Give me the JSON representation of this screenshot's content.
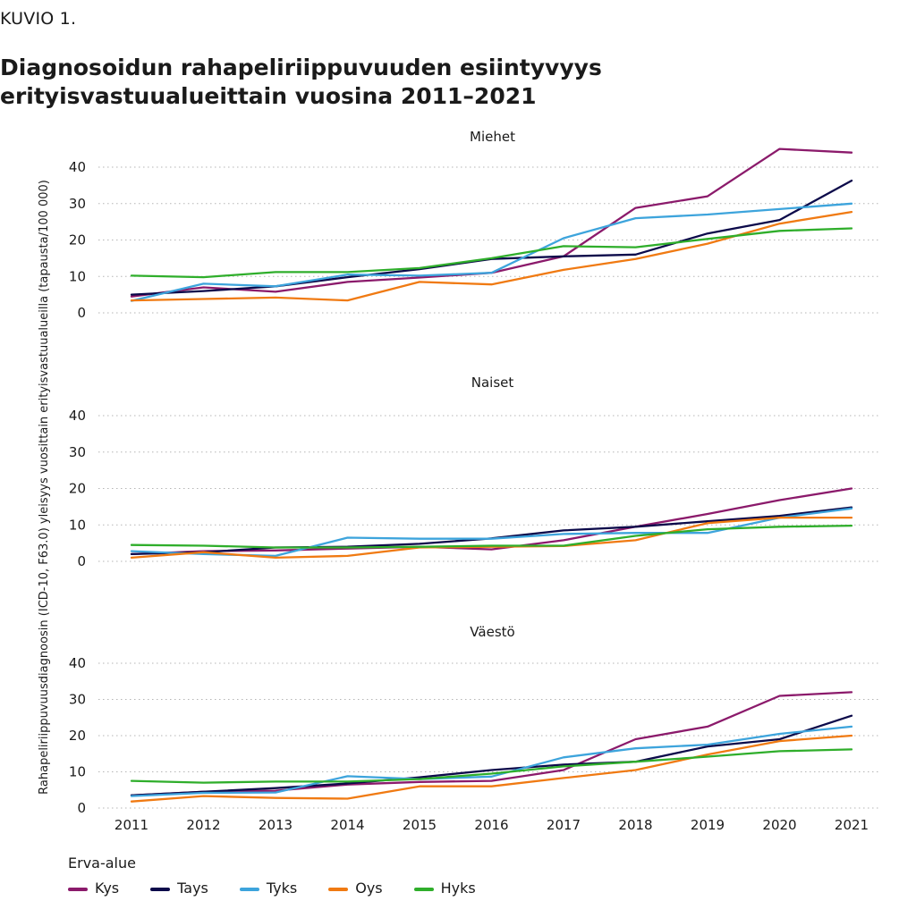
{
  "header": {
    "kuvio": "KUVIO 1.",
    "title": "Diagnosoidun rahapeliriippuvuuden esiintyvyys erityisvastuualueittain vuosina 2011–2021"
  },
  "legend": {
    "title": "Erva-alue"
  },
  "chart_data": {
    "type": "line",
    "x": [
      "2011",
      "2012",
      "2013",
      "2014",
      "2015",
      "2016",
      "2017",
      "2018",
      "2019",
      "2020",
      "2021"
    ],
    "ylabel": "Rahapeliriippuvuusdiagnoosin (ICD-10, F63.0) yleisyys vuosittain erityisvastuualueilla (tapausta/100 000)",
    "ylim": [
      0,
      40
    ],
    "yticks": [
      0,
      10,
      20,
      30,
      40
    ],
    "grid": true,
    "legend_position": "bottom-left",
    "series_colors": {
      "Kys": "#8b1a6b",
      "Tays": "#0c0a4a",
      "Tyks": "#3da4dc",
      "Oys": "#f07a12",
      "Hyks": "#2fae2b"
    },
    "panels": [
      {
        "title": "Miehet",
        "series": [
          {
            "name": "Kys",
            "values": [
              4.5,
              7.0,
              5.8,
              8.5,
              9.7,
              11.0,
              15.5,
              28.8,
              32.0,
              45.0,
              44.0
            ]
          },
          {
            "name": "Tays",
            "values": [
              5.0,
              6.0,
              7.3,
              9.8,
              12.0,
              14.8,
              15.5,
              16.0,
              21.8,
              25.5,
              36.3
            ]
          },
          {
            "name": "Tyks",
            "values": [
              3.3,
              8.0,
              7.3,
              10.5,
              10.2,
              11.0,
              20.5,
              26.0,
              27.0,
              28.5,
              30.0
            ]
          },
          {
            "name": "Oys",
            "values": [
              3.4,
              3.8,
              4.2,
              3.4,
              8.5,
              7.8,
              11.8,
              14.8,
              19.0,
              24.5,
              27.7
            ]
          },
          {
            "name": "Hyks",
            "values": [
              10.2,
              9.8,
              11.2,
              11.2,
              12.3,
              15.0,
              18.3,
              18.0,
              20.3,
              22.5,
              23.2
            ]
          }
        ]
      },
      {
        "title": "Naiset",
        "series": [
          {
            "name": "Kys",
            "values": [
              2.0,
              2.8,
              3.0,
              3.5,
              4.0,
              3.3,
              5.8,
              9.5,
              13.0,
              16.8,
              20.0
            ]
          },
          {
            "name": "Tays",
            "values": [
              2.0,
              2.5,
              3.8,
              4.0,
              4.8,
              6.3,
              8.5,
              9.5,
              11.0,
              12.5,
              14.8
            ]
          },
          {
            "name": "Tyks",
            "values": [
              2.8,
              2.0,
              1.5,
              6.5,
              6.2,
              6.2,
              7.5,
              7.8,
              7.8,
              12.0,
              14.5
            ]
          },
          {
            "name": "Oys",
            "values": [
              1.0,
              2.5,
              1.0,
              1.5,
              3.8,
              4.0,
              4.2,
              5.8,
              10.5,
              12.0,
              12.0
            ]
          },
          {
            "name": "Hyks",
            "values": [
              4.5,
              4.3,
              3.8,
              3.8,
              4.0,
              4.3,
              4.3,
              7.0,
              8.8,
              9.5,
              9.8
            ]
          }
        ]
      },
      {
        "title": "Väestö",
        "series": [
          {
            "name": "Kys",
            "values": [
              3.5,
              4.5,
              4.8,
              6.5,
              7.2,
              7.5,
              10.5,
              19.0,
              22.5,
              31.0,
              32.0
            ]
          },
          {
            "name": "Tays",
            "values": [
              3.5,
              4.5,
              5.5,
              6.8,
              8.5,
              10.5,
              12.0,
              12.8,
              17.0,
              19.0,
              25.5
            ]
          },
          {
            "name": "Tyks",
            "values": [
              3.3,
              4.2,
              4.3,
              8.8,
              8.0,
              8.7,
              14.0,
              16.5,
              17.5,
              20.5,
              22.5
            ]
          },
          {
            "name": "Oys",
            "values": [
              1.8,
              3.3,
              2.8,
              2.6,
              6.0,
              6.0,
              8.3,
              10.5,
              14.8,
              18.5,
              20.0
            ]
          },
          {
            "name": "Hyks",
            "values": [
              7.5,
              7.0,
              7.3,
              7.3,
              8.0,
              9.5,
              11.5,
              12.8,
              14.2,
              15.7,
              16.2
            ]
          }
        ]
      }
    ]
  }
}
